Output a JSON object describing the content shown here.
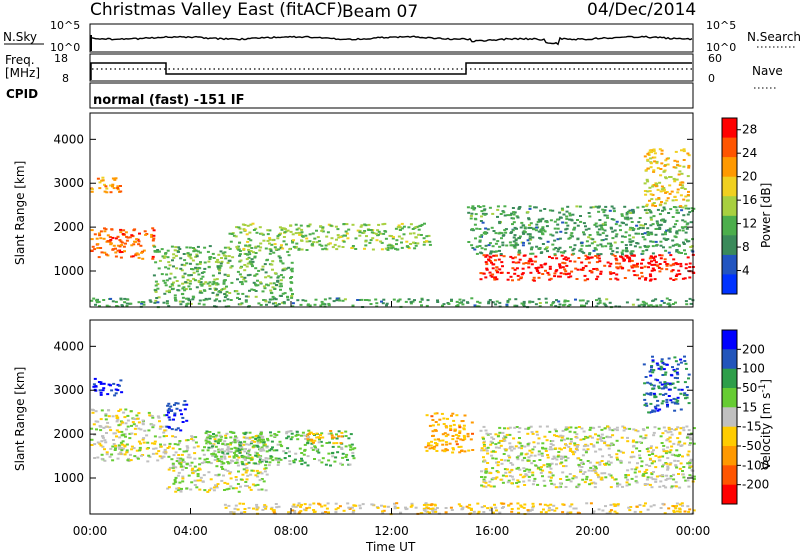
{
  "header": {
    "station": "Christmas Valley East (fitACF)",
    "beam": "Beam 07",
    "date": "04/Dec/2014"
  },
  "strip_panels": {
    "nsky": {
      "label": "N.Sky",
      "ticks": [
        "10^5",
        "10^0"
      ]
    },
    "nsearch": {
      "label": "N.Search",
      "ticks": [
        "10^5",
        "10^0"
      ]
    },
    "freq": {
      "label_line1": "Freq.",
      "label_line2": "[MHz]",
      "ticks": [
        "18",
        "8"
      ]
    },
    "nave": {
      "label": "Nave",
      "ticks": [
        "60",
        "0"
      ]
    },
    "cpid": {
      "label": "CPID",
      "value": "normal (fast) -151 IF"
    }
  },
  "colors": {
    "power_scale": [
      "#0033ff",
      "#2255c0",
      "#3a8a5a",
      "#4cae4c",
      "#a8d040",
      "#f0d020",
      "#ff9900",
      "#ff5500",
      "#ff0000"
    ],
    "velocity_scale": [
      "#0000ff",
      "#2255bb",
      "#2e9e4a",
      "#66cc33",
      "#c0c0c0",
      "#ffcc00",
      "#ff9900",
      "#ff5500",
      "#ff0000"
    ],
    "background": "#ffffff"
  },
  "chart_data": [
    {
      "type": "heatmap",
      "panel": "power",
      "xlabel": "",
      "ylabel": "Slant Range [km]",
      "xlim": [
        "00:00",
        "24:00"
      ],
      "ylim": [
        180,
        4600
      ],
      "yticks": [
        "1000",
        "2000",
        "3000",
        "4000"
      ],
      "colorbar": {
        "label": "Power [dB]",
        "ticks": [
          "4",
          "8",
          "12",
          "16",
          "20",
          "24",
          "28"
        ],
        "range": [
          0,
          30
        ]
      },
      "regions": [
        {
          "name": "E-region near range",
          "t_start": 0.0,
          "t_end": 24.0,
          "r_lo": 200,
          "r_hi": 400,
          "value": 10
        },
        {
          "name": "early F-region",
          "t_start": 0.0,
          "t_end": 2.5,
          "r_lo": 1300,
          "r_hi": 2000,
          "value": 24
        },
        {
          "name": "early high-range echoes",
          "t_start": 0.0,
          "t_end": 1.2,
          "r_lo": 2800,
          "r_hi": 3200,
          "value": 22
        },
        {
          "name": "morning scatter",
          "t_start": 2.5,
          "t_end": 8.0,
          "r_lo": 400,
          "r_hi": 1600,
          "value": 12
        },
        {
          "name": "day band",
          "t_start": 5.5,
          "t_end": 13.5,
          "r_lo": 1500,
          "r_hi": 2100,
          "value": 14
        },
        {
          "name": "evening strong band",
          "t_start": 15.5,
          "t_end": 24.0,
          "r_lo": 800,
          "r_hi": 1400,
          "value": 28
        },
        {
          "name": "evening upper layer",
          "t_start": 15.0,
          "t_end": 24.0,
          "r_lo": 1400,
          "r_hi": 2500,
          "value": 10
        },
        {
          "name": "late high-range echoes",
          "t_start": 22.0,
          "t_end": 23.8,
          "r_lo": 2500,
          "r_hi": 3800,
          "value": 18
        }
      ]
    },
    {
      "type": "heatmap",
      "panel": "velocity",
      "xlabel": "Time UT",
      "ylabel": "Slant Range [km]",
      "xlim": [
        "00:00",
        "24:00"
      ],
      "ylim": [
        180,
        4600
      ],
      "xticks": [
        "00:00",
        "04:00",
        "08:00",
        "12:00",
        "16:00",
        "20:00",
        "00:00"
      ],
      "yticks": [
        "1000",
        "2000",
        "3000",
        "4000"
      ],
      "colorbar": {
        "label": "Velocity [m s^-1]",
        "ticks": [
          "200",
          "100",
          "50",
          "15",
          "-15",
          "-50",
          "-100",
          "-200"
        ],
        "range": [
          -250,
          250
        ]
      },
      "regions": [
        {
          "name": "E-region near range",
          "t_start": 5.0,
          "t_end": 24.0,
          "r_lo": 200,
          "r_hi": 450,
          "value": -40
        },
        {
          "name": "early high-range echoes",
          "t_start": 0.0,
          "t_end": 1.2,
          "r_lo": 2900,
          "r_hi": 3300,
          "value": 220
        },
        {
          "name": "early ground scatter",
          "t_start": 0.0,
          "t_end": 3.0,
          "r_lo": 1400,
          "r_hi": 2600,
          "value": 0
        },
        {
          "name": "03-04 UT blue patch",
          "t_start": 3.0,
          "t_end": 3.8,
          "r_lo": 2100,
          "r_hi": 2800,
          "value": 200
        },
        {
          "name": "morning mixed",
          "t_start": 3.0,
          "t_end": 7.0,
          "r_lo": 700,
          "r_hi": 2000,
          "value": 10
        },
        {
          "name": "day positive band",
          "t_start": 4.5,
          "t_end": 10.5,
          "r_lo": 1300,
          "r_hi": 2100,
          "value": 60
        },
        {
          "name": "09-10 UT negative patch",
          "t_start": 8.5,
          "t_end": 10.0,
          "r_lo": 1800,
          "r_hi": 2100,
          "value": -80
        },
        {
          "name": "14-15 UT negative patch",
          "t_start": 13.3,
          "t_end": 15.2,
          "r_lo": 1600,
          "r_hi": 2500,
          "value": -90
        },
        {
          "name": "evening ground scatter",
          "t_start": 15.5,
          "t_end": 24.0,
          "r_lo": 800,
          "r_hi": 2200,
          "value": 0
        },
        {
          "name": "late high-range echoes",
          "t_start": 22.0,
          "t_end": 23.8,
          "r_lo": 2500,
          "r_hi": 3800,
          "value": 160
        }
      ]
    }
  ]
}
